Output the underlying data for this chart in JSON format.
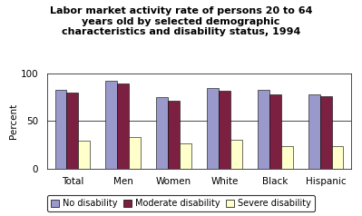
{
  "categories": [
    "Total",
    "Men",
    "Women",
    "White",
    "Black",
    "Hispanic"
  ],
  "series": {
    "No disability": [
      83,
      92,
      75,
      85,
      83,
      78
    ],
    "Moderate disability": [
      80,
      89,
      71,
      82,
      78,
      76
    ],
    "Severe disability": [
      29,
      33,
      26,
      30,
      24,
      24
    ]
  },
  "colors": {
    "No disability": "#9999cc",
    "Moderate disability": "#7b2040",
    "Severe disability": "#ffffcc"
  },
  "title": "Labor market activity rate of persons 20 to 64\nyears old by selected demographic\ncharacteristics and disability status, 1994",
  "ylabel": "Percent",
  "ylim": [
    0,
    100
  ],
  "yticks": [
    0,
    50,
    100
  ],
  "legend_labels": [
    "No disability",
    "Moderate disability",
    "Severe disability"
  ],
  "background_color": "#ffffff",
  "plot_bg_color": "#ffffff",
  "title_fontsize": 8,
  "axis_fontsize": 7.5,
  "legend_fontsize": 7,
  "bar_width": 0.23
}
